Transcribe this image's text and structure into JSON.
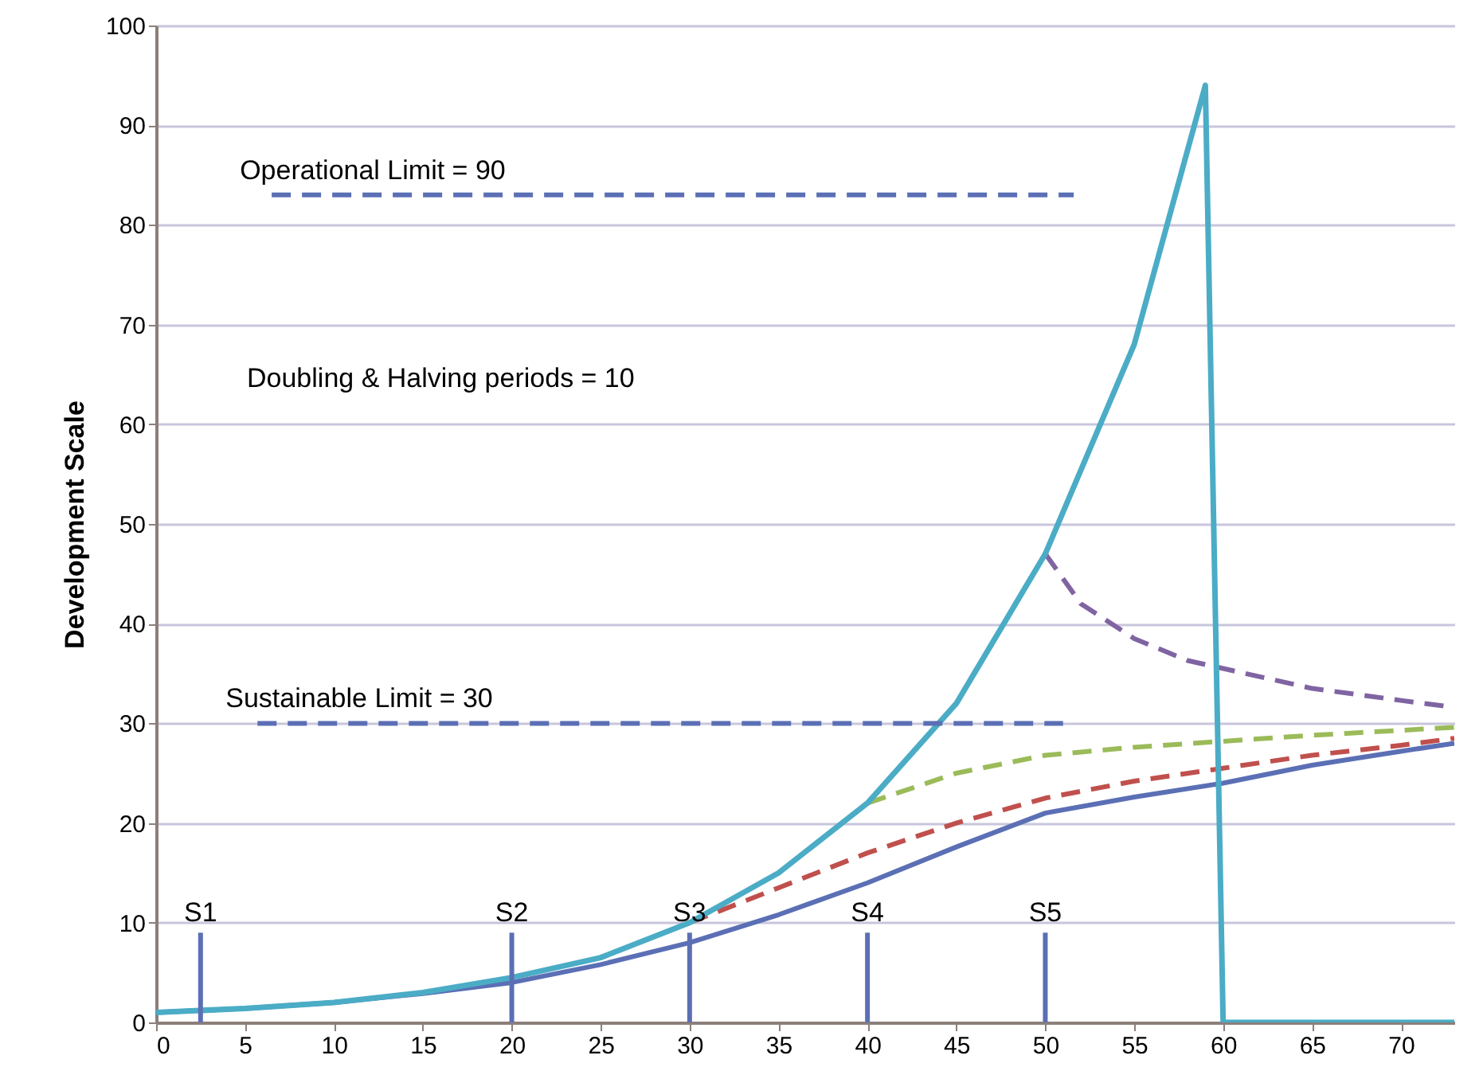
{
  "chart_data": {
    "type": "line",
    "ylabel": "Development Scale",
    "xlim": [
      0,
      73
    ],
    "xticks": [
      0,
      5,
      10,
      15,
      20,
      25,
      30,
      35,
      40,
      45,
      50,
      55,
      60,
      65,
      70
    ],
    "ylim": [
      0,
      100
    ],
    "yticks": [
      0,
      10,
      20,
      30,
      40,
      50,
      60,
      70,
      80,
      90,
      100
    ],
    "grid": "y",
    "marker": "none",
    "series": [
      {
        "color": "#5b6fb5",
        "line_style": "solid",
        "x": [
          0,
          5,
          10,
          15,
          20,
          25,
          30,
          35,
          40,
          45,
          50,
          55,
          60,
          65,
          70,
          73
        ],
        "values": [
          1,
          1.4,
          2,
          2.9,
          4,
          5.8,
          8,
          10.8,
          14,
          17.6,
          21,
          22.6,
          24,
          25.8,
          27.2,
          28
        ]
      },
      {
        "color": "#c0504d",
        "line_style": "dashed",
        "x": [
          30,
          35,
          40,
          45,
          50,
          55,
          60,
          65,
          70,
          73
        ],
        "values": [
          10,
          13.5,
          17,
          20,
          22.5,
          24.2,
          25.5,
          26.8,
          27.8,
          28.5
        ]
      },
      {
        "color": "#9bbb59",
        "line_style": "dashed",
        "x": [
          40,
          45,
          50,
          55,
          60,
          65,
          70,
          73
        ],
        "values": [
          22,
          25,
          26.8,
          27.6,
          28.2,
          28.8,
          29.3,
          29.6
        ]
      },
      {
        "color": "#8064a2",
        "line_style": "dashed",
        "x": [
          50,
          52,
          55,
          58,
          60,
          65,
          70,
          73
        ],
        "values": [
          47,
          42,
          38.5,
          36.3,
          35.5,
          33.5,
          32.3,
          31.6
        ]
      },
      {
        "color": "#4bacc6",
        "line_style": "solid",
        "x": [
          0,
          5,
          10,
          15,
          20,
          25,
          30,
          35,
          40,
          45,
          50,
          55,
          59,
          60,
          73
        ],
        "values": [
          1,
          1.4,
          2,
          3,
          4.5,
          6.5,
          10,
          15,
          22,
          32,
          47,
          68,
          94,
          0,
          0
        ]
      },
      {
        "name": "Operational  Limit = 90",
        "color": "#5b6fb5",
        "line_style": "dashed",
        "x": [
          6.5,
          51.6
        ],
        "values": [
          83,
          83
        ]
      },
      {
        "name": "Sustainable Limit = 30",
        "color": "#5b6fb5",
        "line_style": "dashed",
        "x": [
          5.7,
          51
        ],
        "values": [
          30,
          30
        ]
      },
      {
        "name": "S1",
        "color": "#5b6fb5",
        "line_style": "solid",
        "x": [
          2.5,
          2.5
        ],
        "values": [
          0,
          9
        ]
      },
      {
        "name": "S2",
        "color": "#5b6fb5",
        "line_style": "solid",
        "x": [
          20,
          20
        ],
        "values": [
          0,
          9
        ]
      },
      {
        "name": "S3",
        "color": "#5b6fb5",
        "line_style": "solid",
        "x": [
          30,
          30
        ],
        "values": [
          0,
          9
        ]
      },
      {
        "name": "S4",
        "color": "#5b6fb5",
        "line_style": "solid",
        "x": [
          40,
          40
        ],
        "values": [
          0,
          9
        ]
      },
      {
        "name": "S5",
        "color": "#5b6fb5",
        "line_style": "solid",
        "x": [
          50,
          50
        ],
        "values": [
          0,
          9
        ]
      }
    ],
    "annotations": [
      "Doubling & Halving periods = 10"
    ]
  }
}
